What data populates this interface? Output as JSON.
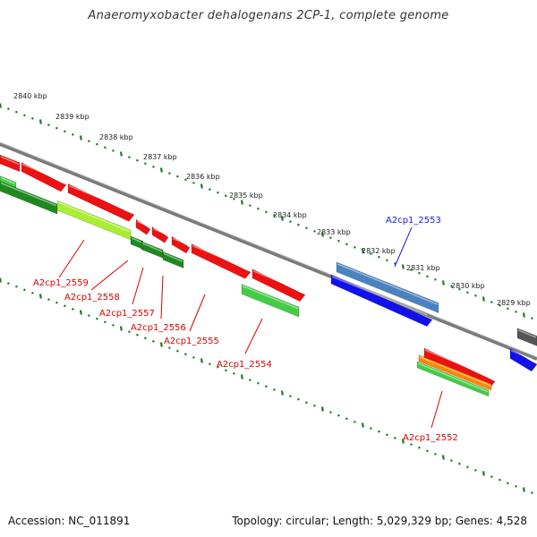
{
  "title": "Anaeromyxobacter dehalogenans 2CP-1, complete genome",
  "footer": {
    "accession": "Accession: NC_011891",
    "summary": "Topology: circular; Length: 5,029,329 bp; Genes: 4,528"
  },
  "scale_labels": [
    "2840 kbp",
    "2839 kbp",
    "2838 kbp",
    "2837 kbp",
    "2836 kbp",
    "2835 kbp",
    "2834 kbp",
    "2833 kbp",
    "2832 kbp",
    "2831 kbp",
    "2830 kbp",
    "2829 kbp"
  ],
  "gene_labels": [
    {
      "name": "A2cp1_2553",
      "color": "#1a1aee"
    },
    {
      "name": "A2cp1_2559",
      "color": "#dd0000"
    },
    {
      "name": "A2cp1_2558",
      "color": "#dd0000"
    },
    {
      "name": "A2cp1_2557",
      "color": "#dd0000"
    },
    {
      "name": "A2cp1_2556",
      "color": "#dd0000"
    },
    {
      "name": "A2cp1_2555",
      "color": "#dd0000"
    },
    {
      "name": "A2cp1_2554",
      "color": "#dd0000"
    },
    {
      "name": "A2cp1_2552",
      "color": "#dd0000"
    }
  ],
  "colors": {
    "backbone": "#7a7a7a",
    "tick": "#1f7a1f",
    "cds_red": "#ee1111",
    "cds_steel": "#4a82c0",
    "cds_blue": "#1111ee",
    "cds_green_dark": "#1e8a1e",
    "cds_green_light": "#44cc44",
    "cds_yellowgreen": "#aaee33",
    "cds_orange": "#ff8800",
    "cds_gray": "#555555"
  }
}
